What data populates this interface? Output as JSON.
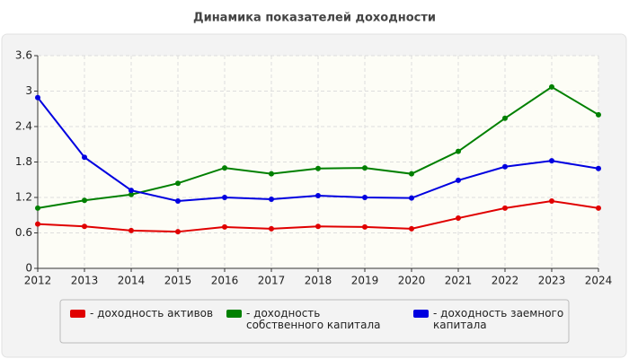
{
  "chart_data": {
    "type": "line",
    "title": "Динамика показателей доходности",
    "x": [
      2012,
      2013,
      2014,
      2015,
      2016,
      2017,
      2018,
      2019,
      2020,
      2021,
      2022,
      2023,
      2024
    ],
    "xlim": [
      2012,
      2024
    ],
    "xticks": [
      2012,
      2013,
      2014,
      2015,
      2016,
      2017,
      2018,
      2019,
      2020,
      2021,
      2022,
      2023,
      2024
    ],
    "ylim": [
      0,
      3.6
    ],
    "yticks": [
      0,
      0.6,
      1.2,
      1.8,
      2.4,
      3,
      3.6
    ],
    "grid": true,
    "series": [
      {
        "name": "- доходность активов",
        "color": "#e00000",
        "values": [
          0.75,
          0.71,
          0.64,
          0.62,
          0.7,
          0.67,
          0.71,
          0.7,
          0.67,
          0.85,
          1.02,
          1.14,
          1.02
        ]
      },
      {
        "name": "- доходность собственного капитала",
        "color": "#008000",
        "values": [
          1.02,
          1.15,
          1.25,
          1.44,
          1.7,
          1.6,
          1.69,
          1.7,
          1.6,
          1.98,
          2.54,
          3.07,
          2.6
        ]
      },
      {
        "name": "- доходность заемного капитала",
        "color": "#0000e0",
        "values": [
          2.89,
          1.88,
          1.32,
          1.14,
          1.2,
          1.17,
          1.23,
          1.2,
          1.19,
          1.49,
          1.72,
          1.82,
          1.69
        ]
      }
    ]
  }
}
